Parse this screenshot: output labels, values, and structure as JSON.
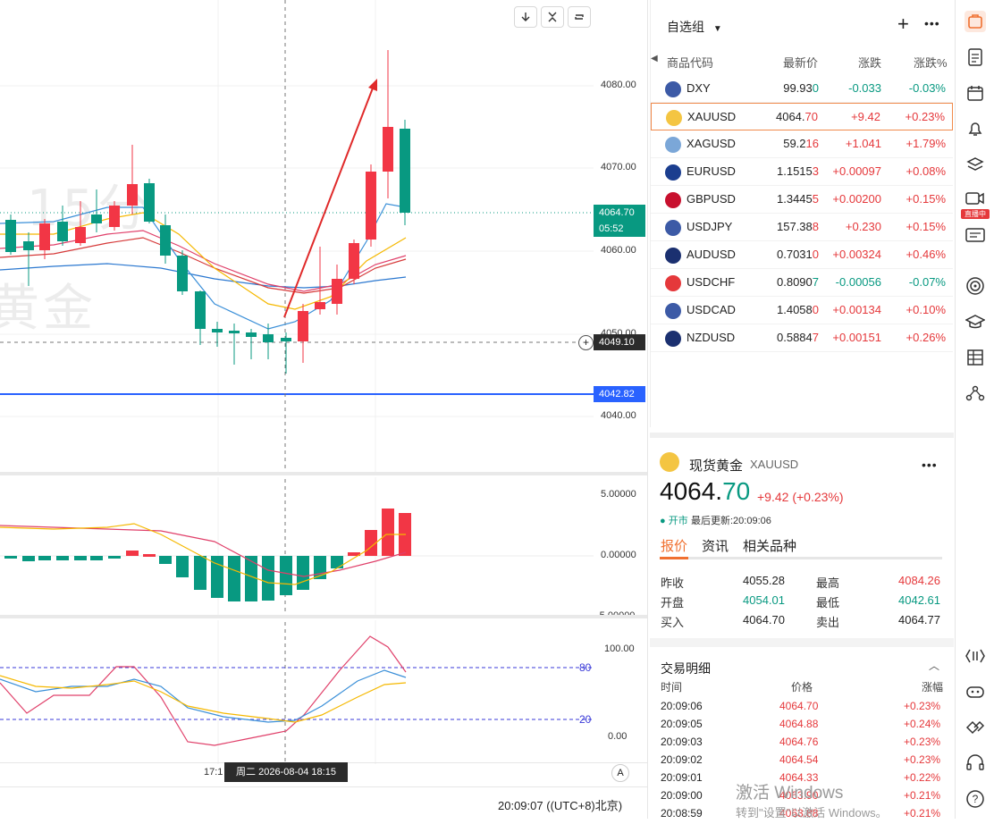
{
  "chart": {
    "watermark_line1": "15分",
    "watermark_line2": "黄金",
    "price_axis": [
      "4080.00",
      "4070.00",
      "4060.00",
      "4050.00",
      "4040.00"
    ],
    "current_price_tag": "4064.70",
    "countdown_tag": "05:52",
    "crosshair_price_tag": "4049.10",
    "blue_line_tag": "4042.82",
    "macd_axis": [
      "5.00000",
      "0.00000",
      "-5.00000"
    ],
    "kdj_axis": [
      "100.00",
      "0.00"
    ],
    "kdj_level_80": "80",
    "kdj_level_20": "20",
    "time_tick_partial": "17:1",
    "crosshair_time": "周二 2026-08-04  18:15",
    "auto_scale_label": "A",
    "status_time": "20:09:07",
    "timezone": "((UTC+8)北京)",
    "colors": {
      "up": "#f23645",
      "down": "#089981",
      "blue_line": "#2962ff"
    }
  },
  "watchlist": {
    "title": "自选组",
    "columns": {
      "symbol": "商品代码",
      "last": "最新价",
      "change": "涨跌",
      "change_pct": "涨跌%"
    },
    "rows": [
      {
        "flag": "us-flag",
        "symbol": "DXY",
        "last_main": "99.93",
        "last_tail": "0",
        "change": "-0.033",
        "pct": "-0.03%",
        "dir": "dn"
      },
      {
        "flag": "gold-coin",
        "symbol": "XAUUSD",
        "last_main": "4064.",
        "last_tail": "70",
        "change": "+9.42",
        "pct": "+0.23%",
        "dir": "up"
      },
      {
        "flag": "silver-coin",
        "symbol": "XAGUSD",
        "last_main": "59.2",
        "last_tail": "16",
        "change": "+1.041",
        "pct": "+1.79%",
        "dir": "up"
      },
      {
        "flag": "eu-flag",
        "symbol": "EURUSD",
        "last_main": "1.1515",
        "last_tail": "3",
        "change": "+0.00097",
        "pct": "+0.08%",
        "dir": "up"
      },
      {
        "flag": "uk-flag",
        "symbol": "GBPUSD",
        "last_main": "1.3445",
        "last_tail": "5",
        "change": "+0.00200",
        "pct": "+0.15%",
        "dir": "up"
      },
      {
        "flag": "us-flag",
        "symbol": "USDJPY",
        "last_main": "157.38",
        "last_tail": "8",
        "change": "+0.230",
        "pct": "+0.15%",
        "dir": "up"
      },
      {
        "flag": "au-flag",
        "symbol": "AUDUSD",
        "last_main": "0.7031",
        "last_tail": "0",
        "change": "+0.00324",
        "pct": "+0.46%",
        "dir": "up"
      },
      {
        "flag": "ch-flag",
        "symbol": "USDCHF",
        "last_main": "0.8090",
        "last_tail": "7",
        "change": "-0.00056",
        "pct": "-0.07%",
        "dir": "dn"
      },
      {
        "flag": "us-flag",
        "symbol": "USDCAD",
        "last_main": "1.4058",
        "last_tail": "0",
        "change": "+0.00134",
        "pct": "+0.10%",
        "dir": "up"
      },
      {
        "flag": "nz-flag",
        "symbol": "NZDUSD",
        "last_main": "0.5884",
        "last_tail": "7",
        "change": "+0.00151",
        "pct": "+0.26%",
        "dir": "up"
      }
    ]
  },
  "detail": {
    "name": "现货黄金",
    "symbol": "XAUUSD",
    "price_main": "4064.",
    "price_tail": "70",
    "change": "+9.42 (+0.23%)",
    "market_status": "● 开市",
    "updated": "最后更新:20:09:06",
    "tabs": [
      "报价",
      "资讯",
      "相关品种"
    ],
    "quote": {
      "prev_close_label": "昨收",
      "prev_close": "4055.28",
      "high_label": "最高",
      "high": "4084.26",
      "open_label": "开盘",
      "open": "4054.01",
      "low_label": "最低",
      "low": "4042.61",
      "bid_label": "买入",
      "bid": "4064.70",
      "ask_label": "卖出",
      "ask": "4064.77"
    },
    "trades_title": "交易明细",
    "trades_cols": [
      "时间",
      "价格",
      "涨幅"
    ],
    "trades": [
      {
        "time": "20:09:06",
        "price": "4064.70",
        "pct": "+0.23%"
      },
      {
        "time": "20:09:05",
        "price": "4064.88",
        "pct": "+0.24%"
      },
      {
        "time": "20:09:03",
        "price": "4064.76",
        "pct": "+0.23%"
      },
      {
        "time": "20:09:02",
        "price": "4064.54",
        "pct": "+0.23%"
      },
      {
        "time": "20:09:01",
        "price": "4064.33",
        "pct": "+0.22%"
      },
      {
        "time": "20:09:00",
        "price": "4063.90",
        "pct": "+0.21%"
      },
      {
        "time": "20:08:59",
        "price": "4063.88",
        "pct": "+0.21%"
      }
    ]
  },
  "os_watermark": {
    "line1": "激活 Windows",
    "line2": "转到\"设置\"以激活 Windows。"
  },
  "sidebar": {
    "live_badge": "直播中"
  }
}
